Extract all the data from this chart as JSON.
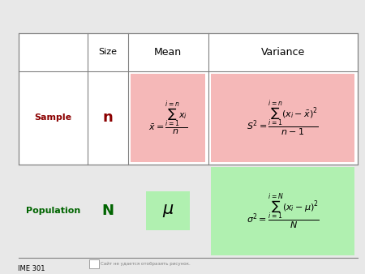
{
  "title": "",
  "footer": "IME 301",
  "bg_color": "#e8e8e8",
  "table_bg": "#ffffff",
  "pink_bg": "#f5b8b8",
  "green_bg": "#b0f0b0",
  "sample_color": "#8b0000",
  "population_color": "#006400",
  "header_color": "#000000",
  "sublabel_text": "Сайт не удается отобразить рисунок.",
  "col_bounds": [
    0.05,
    0.24,
    0.35,
    0.57,
    0.98
  ],
  "row_bounds": [
    0.88,
    0.74,
    0.4,
    0.06,
    0.02
  ]
}
